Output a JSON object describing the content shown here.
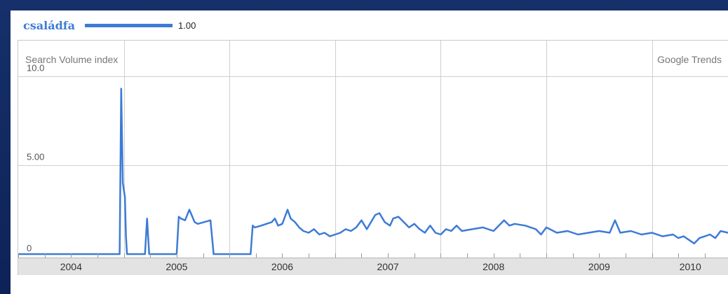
{
  "legend": {
    "term": "családfa",
    "value": "1.00",
    "color": "#3d7bd6"
  },
  "header": {
    "ylabel": "Search Volume index",
    "brand": "Google Trends"
  },
  "chart_data": {
    "type": "line",
    "title": "",
    "xlabel": "",
    "ylabel": "Search Volume index",
    "x_tick_labels": [
      "2004",
      "2005",
      "2006",
      "2007",
      "2008",
      "2009",
      "2010"
    ],
    "y_tick_labels": [
      "0",
      "5.00",
      "10.0"
    ],
    "ylim": [
      0,
      12
    ],
    "xlim": [
      2004.0,
      2010.72
    ],
    "grid": true,
    "legend_position": "top-left",
    "series": [
      {
        "name": "családfa",
        "color": "#3d7bd6",
        "x": [
          2004.0,
          2004.95,
          2004.96,
          2004.975,
          2004.99,
          2005.01,
          2005.02,
          2005.03,
          2005.04,
          2005.06,
          2005.2,
          2005.22,
          2005.24,
          2005.26,
          2005.5,
          2005.52,
          2005.54,
          2005.58,
          2005.62,
          2005.67,
          2005.7,
          2005.76,
          2005.82,
          2005.85,
          2005.9,
          2005.92,
          2006.2,
          2006.22,
          2006.24,
          2006.3,
          2006.35,
          2006.4,
          2006.43,
          2006.46,
          2006.5,
          2006.55,
          2006.58,
          2006.62,
          2006.66,
          2006.7,
          2006.75,
          2006.8,
          2006.85,
          2006.9,
          2006.95,
          2007.0,
          2007.05,
          2007.1,
          2007.15,
          2007.2,
          2007.25,
          2007.3,
          2007.35,
          2007.38,
          2007.42,
          2007.47,
          2007.52,
          2007.55,
          2007.6,
          2007.65,
          2007.7,
          2007.75,
          2007.8,
          2007.85,
          2007.9,
          2007.95,
          2008.0,
          2008.05,
          2008.1,
          2008.15,
          2008.2,
          2008.3,
          2008.4,
          2008.5,
          2008.6,
          2008.65,
          2008.7,
          2008.8,
          2008.9,
          2008.95,
          2009.0,
          2009.1,
          2009.2,
          2009.3,
          2009.4,
          2009.5,
          2009.6,
          2009.65,
          2009.7,
          2009.8,
          2009.9,
          2010.0,
          2010.1,
          2010.2,
          2010.25,
          2010.3,
          2010.35,
          2010.4,
          2010.45,
          2010.5,
          2010.55,
          2010.6,
          2010.65,
          2010.72
        ],
        "y": [
          0,
          0,
          0,
          9.3,
          4.0,
          3.2,
          1.0,
          0,
          0,
          0,
          0,
          2.0,
          0,
          0,
          0,
          2.1,
          2.0,
          1.9,
          2.5,
          1.8,
          1.7,
          1.8,
          1.9,
          0,
          0,
          0,
          0,
          1.6,
          1.5,
          1.6,
          1.7,
          1.8,
          2.0,
          1.6,
          1.7,
          2.5,
          2.0,
          1.8,
          1.5,
          1.3,
          1.2,
          1.4,
          1.1,
          1.2,
          1.0,
          1.1,
          1.2,
          1.4,
          1.3,
          1.5,
          1.9,
          1.4,
          1.9,
          2.2,
          2.3,
          1.8,
          1.6,
          2.0,
          2.1,
          1.8,
          1.5,
          1.7,
          1.4,
          1.2,
          1.6,
          1.2,
          1.1,
          1.4,
          1.3,
          1.6,
          1.3,
          1.4,
          1.5,
          1.3,
          1.9,
          1.6,
          1.7,
          1.6,
          1.4,
          1.1,
          1.5,
          1.2,
          1.3,
          1.1,
          1.2,
          1.3,
          1.2,
          1.9,
          1.2,
          1.3,
          1.1,
          1.2,
          1.0,
          1.1,
          0.9,
          1.0,
          0.8,
          0.6,
          0.9,
          1.0,
          1.1,
          0.9,
          1.3,
          1.2
        ]
      }
    ]
  }
}
